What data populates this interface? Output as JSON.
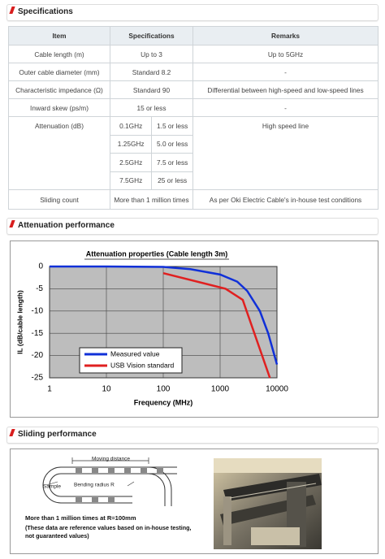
{
  "sections": {
    "specifications": "Specifications",
    "attenuation": "Attenuation performance",
    "sliding": "Sliding performance"
  },
  "table": {
    "header": [
      "Item",
      "Specifications",
      "Remarks"
    ],
    "rows": [
      [
        "Cable length (m)",
        "Up to 3",
        "Up to 5GHz"
      ],
      [
        "Outer cable diameter (mm)",
        "Standard 8.2",
        "-"
      ],
      [
        "Characteristic impedance (Ω)",
        "Standard 90",
        "Differential between high-speed and low-speed lines"
      ],
      [
        "Inward skew (ps/m)",
        "15 or less",
        "-"
      ],
      {
        "item": "Attenuation (dB)",
        "sub_rows": [
          [
            "0.1GHz",
            "1.5 or less"
          ],
          [
            "1.25GHz",
            "5.0 or less"
          ],
          [
            "2.5GHz",
            "7.5 or less"
          ],
          [
            "7.5GHz",
            "25 or less"
          ]
        ],
        "remarks": "High speed line"
      },
      [
        "Sliding count",
        "More than 1 million times",
        "As per Oki Electric Cable's in-house test conditions"
      ]
    ]
  },
  "chart_data": {
    "type": "line",
    "title": "Attenuation properties (Cable length 3m)",
    "x_label": "Frequency (MHz)",
    "y_label": "IL (dB/cable length)",
    "xlog": true,
    "xlim": [
      1,
      10000
    ],
    "xticks": [
      1,
      10,
      100,
      1000,
      10000
    ],
    "ylim": [
      -25,
      0
    ],
    "yticks": [
      0,
      -5,
      -10,
      -15,
      -20,
      -25
    ],
    "grid": true,
    "legend": "lower left",
    "series": [
      {
        "name": "Measured value",
        "color": "#1030d8",
        "x": [
          1,
          10,
          100,
          300,
          1000,
          2000,
          3000,
          5000,
          7000,
          10000
        ],
        "values": [
          0,
          0,
          -0.1,
          -0.6,
          -1.8,
          -3.4,
          -5.5,
          -10,
          -15,
          -22
        ]
      },
      {
        "name": "USB Vision standard",
        "color": "#e02020",
        "x": [
          100,
          1250,
          2500,
          7500
        ],
        "values": [
          -1.5,
          -5,
          -7.5,
          -25
        ]
      }
    ]
  },
  "sliding": {
    "labels": {
      "moving_distance": "Moving distance",
      "sample": "Sample",
      "bending_radius": "Bending radius R"
    },
    "caption": "More than 1 million times at R=100mm",
    "note": [
      "(These data are reference values based on in-house testing,",
      "not guaranteed values)"
    ]
  }
}
